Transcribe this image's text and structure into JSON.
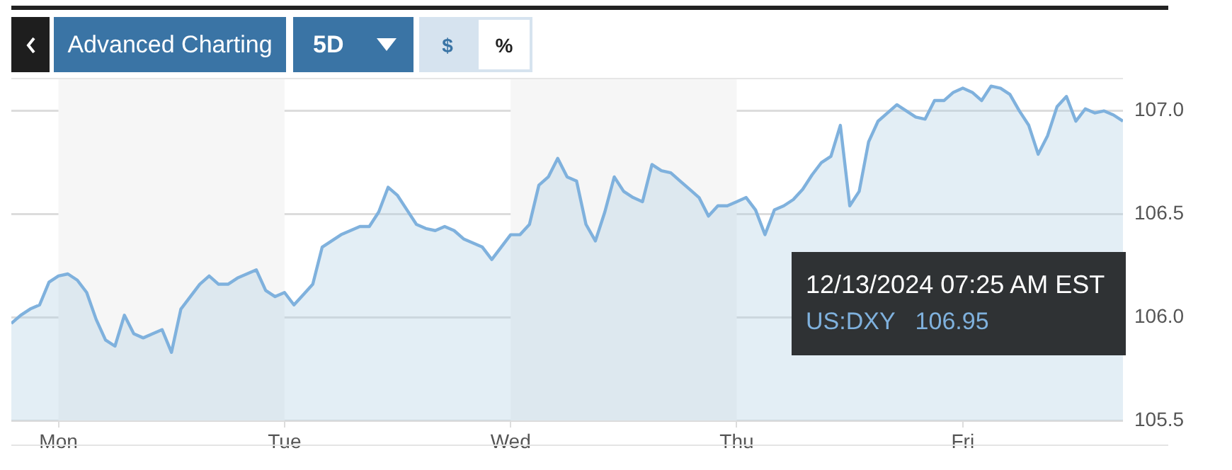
{
  "chart_data": {
    "type": "area",
    "categories": [
      null,
      null,
      null,
      null,
      null,
      "Mon",
      null,
      null,
      null,
      null,
      null,
      null,
      null,
      null,
      null,
      null,
      null,
      null,
      null,
      null,
      null,
      null,
      null,
      null,
      null,
      null,
      null,
      null,
      null,
      "Tue",
      null,
      null,
      null,
      null,
      null,
      null,
      null,
      null,
      null,
      null,
      null,
      null,
      null,
      null,
      null,
      null,
      null,
      null,
      null,
      null,
      null,
      null,
      null,
      "Wed",
      null,
      null,
      null,
      null,
      null,
      null,
      null,
      null,
      null,
      null,
      null,
      null,
      null,
      null,
      null,
      null,
      null,
      null,
      null,
      null,
      null,
      null,
      null,
      "Thu",
      null,
      null,
      null,
      null,
      null,
      null,
      null,
      null,
      null,
      null,
      null,
      null,
      null,
      null,
      null,
      null,
      null,
      null,
      null,
      null,
      null,
      null,
      null,
      "Fri",
      null,
      null,
      null,
      null,
      null,
      null,
      null,
      null,
      null,
      null,
      null,
      null,
      null,
      null,
      null,
      null,
      null
    ],
    "series": [
      {
        "name": "US:DXY",
        "color": "#7fb1dd",
        "values": [
          105.97,
          106.01,
          106.04,
          106.06,
          106.17,
          106.2,
          106.21,
          106.18,
          106.12,
          105.99,
          105.89,
          105.86,
          106.01,
          105.92,
          105.9,
          105.92,
          105.94,
          105.83,
          106.04,
          106.1,
          106.16,
          106.2,
          106.16,
          106.16,
          106.19,
          106.21,
          106.23,
          106.13,
          106.1,
          106.12,
          106.06,
          106.11,
          106.16,
          106.34,
          106.37,
          106.4,
          106.42,
          106.44,
          106.44,
          106.51,
          106.63,
          106.59,
          106.52,
          106.45,
          106.43,
          106.42,
          106.44,
          106.42,
          106.38,
          106.36,
          106.34,
          106.28,
          106.34,
          106.4,
          106.4,
          106.45,
          106.64,
          106.68,
          106.77,
          106.68,
          106.66,
          106.45,
          106.37,
          106.51,
          106.68,
          106.61,
          106.58,
          106.56,
          106.74,
          106.71,
          106.7,
          106.66,
          106.62,
          106.58,
          106.49,
          106.54,
          106.54,
          106.56,
          106.58,
          106.52,
          106.4,
          106.52,
          106.54,
          106.57,
          106.62,
          106.69,
          106.75,
          106.78,
          106.93,
          106.54,
          106.61,
          106.85,
          106.95,
          106.99,
          107.03,
          107.0,
          106.97,
          106.96,
          107.05,
          107.05,
          107.09,
          107.11,
          107.09,
          107.05,
          107.12,
          107.11,
          107.08,
          107.0,
          106.93,
          106.79,
          106.88,
          107.02,
          107.07,
          106.95,
          107.01,
          106.99,
          107.0,
          106.98,
          106.95
        ]
      }
    ],
    "ylim": [
      105.5,
      107.16
    ],
    "yticks": [
      {
        "value": 105.5,
        "label": "105.5"
      },
      {
        "value": 106,
        "label": "106.0"
      },
      {
        "value": 106.5,
        "label": "106.5"
      },
      {
        "value": 107,
        "label": "107.0"
      }
    ],
    "grid": "y",
    "marker": "none",
    "bands": [
      {
        "axis": "x",
        "from": "Mon",
        "to": "Tue",
        "color": "#f6f6f6"
      },
      {
        "axis": "x",
        "from": "Wed",
        "to": "Thu",
        "color": "#f6f6f6"
      }
    ],
    "annotations": [
      "Advanced Charting",
      "5D",
      "$",
      "%",
      "12/13/2024 07:25 AM EST",
      "106.95"
    ]
  }
}
